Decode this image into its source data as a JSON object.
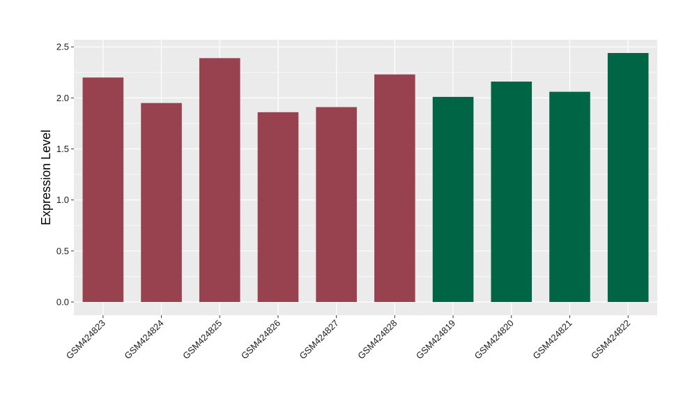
{
  "chart_data": {
    "type": "bar",
    "title": "",
    "xlabel": "",
    "ylabel": "Expression Level",
    "ylim": [
      -0.13,
      2.57
    ],
    "yticks": [
      0.0,
      0.5,
      1.0,
      1.5,
      2.0,
      2.5
    ],
    "ytick_labels": [
      "0.0",
      "0.5",
      "1.0",
      "1.5",
      "2.0",
      "2.5"
    ],
    "categories": [
      "GSM424823",
      "GSM424824",
      "GSM424825",
      "GSM424826",
      "GSM424827",
      "GSM424828",
      "GSM424819",
      "GSM424820",
      "GSM424821",
      "GSM424822"
    ],
    "values": [
      2.2,
      1.95,
      2.39,
      1.86,
      1.91,
      2.23,
      2.01,
      2.16,
      2.06,
      2.44
    ],
    "bar_colors": [
      "#98414F",
      "#98414F",
      "#98414F",
      "#98414F",
      "#98414F",
      "#98414F",
      "#006544",
      "#006544",
      "#006544",
      "#006544"
    ],
    "panel_background": "#EBEBEB",
    "grid": true,
    "grid_color": "#FFFFFF",
    "legend": "none"
  }
}
